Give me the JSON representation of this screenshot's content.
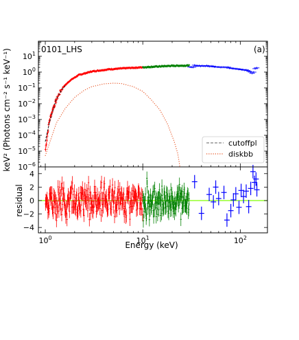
{
  "chart_data": [
    {
      "type": "scatter",
      "panel": "top",
      "tag": "(a)",
      "annotation": "0101_LHS",
      "ylabel": "keV² (Photons cm⁻² s⁻¹ keV⁻¹)",
      "xscale": "log",
      "yscale": "log",
      "xlim": [
        0.85,
        190
      ],
      "ylim": [
        1e-06,
        90
      ],
      "yticks": [
        1e-06,
        1e-05,
        0.0001,
        0.001,
        0.01,
        0.1,
        1,
        10
      ],
      "ytick_labels": [
        {
          "mant": "10",
          "exp": "−6"
        },
        {
          "mant": "10",
          "exp": "−5"
        },
        {
          "mant": "10",
          "exp": "−4"
        },
        {
          "mant": "10",
          "exp": "−3"
        },
        {
          "mant": "10",
          "exp": "−2"
        },
        {
          "mant": "10",
          "exp": "−1"
        },
        {
          "mant": "10",
          "exp": "0"
        },
        {
          "mant": "10",
          "exp": "1"
        }
      ],
      "legend_position": "lower-right",
      "legend": [
        {
          "label": "cutoffpl",
          "color": "#7f7f7f",
          "style": "dashed"
        },
        {
          "label": "diskbb",
          "color": "#e8501e",
          "style": "dotted"
        }
      ],
      "series": [
        {
          "name": "",
          "color": "#ff0000",
          "x_range": [
            1.0,
            10.0
          ],
          "description_points": [
            [
              1.0,
              1e-05
            ],
            [
              1.05,
              0.0001
            ],
            [
              1.1,
              0.0008
            ],
            [
              1.2,
              0.005
            ],
            [
              1.35,
              0.03
            ],
            [
              1.5,
              0.1
            ],
            [
              1.8,
              0.3
            ],
            [
              2.2,
              0.65
            ],
            [
              3.0,
              1.1
            ],
            [
              4.5,
              1.5
            ],
            [
              7.0,
              1.8
            ],
            [
              10.0,
              2.0
            ]
          ]
        },
        {
          "name": "",
          "color": "#008000",
          "x_range": [
            10.0,
            30.0
          ],
          "description_points": [
            [
              10.0,
              2.0
            ],
            [
              15.0,
              2.3
            ],
            [
              20.0,
              2.5
            ],
            [
              30.0,
              2.6
            ]
          ]
        },
        {
          "name": "",
          "color": "#0000ff",
          "x_range": [
            30.0,
            150.0
          ],
          "description_points": [
            [
              33,
              2.6
            ],
            [
              40,
              2.5
            ],
            [
              50,
              2.35
            ],
            [
              65,
              2.1
            ],
            [
              80,
              1.85
            ],
            [
              100,
              1.55
            ],
            [
              120,
              1.25
            ],
            [
              135,
              0.75
            ],
            [
              140,
              1.5
            ],
            [
              150,
              2.0
            ]
          ]
        }
      ],
      "models": [
        {
          "name": "cutoffpl",
          "points": [
            [
              1.0,
              4e-05
            ],
            [
              1.1,
              0.0006
            ],
            [
              1.2,
              0.004
            ],
            [
              1.3,
              0.02
            ],
            [
              1.5,
              0.09
            ],
            [
              2.0,
              0.5
            ],
            [
              3.0,
              1.1
            ],
            [
              5.0,
              1.6
            ],
            [
              10.0,
              2.0
            ],
            [
              20.0,
              2.5
            ],
            [
              40.0,
              2.5
            ],
            [
              80.0,
              1.9
            ],
            [
              150.0,
              1.0
            ]
          ]
        },
        {
          "name": "diskbb",
          "points": [
            [
              1.0,
              5e-06
            ],
            [
              1.1,
              3e-05
            ],
            [
              1.3,
              0.0006
            ],
            [
              1.6,
              0.005
            ],
            [
              2.0,
              0.025
            ],
            [
              2.5,
              0.07
            ],
            [
              3.0,
              0.12
            ],
            [
              4.0,
              0.18
            ],
            [
              5.0,
              0.2
            ],
            [
              6.0,
              0.19
            ],
            [
              8.0,
              0.12
            ],
            [
              10.0,
              0.06
            ],
            [
              12.0,
              0.02
            ],
            [
              15.0,
              0.004
            ],
            [
              18.0,
              0.0005
            ],
            [
              21.0,
              4e-05
            ],
            [
              23.0,
              6e-06
            ],
            [
              24.0,
              1e-06
            ]
          ]
        }
      ]
    },
    {
      "type": "scatter",
      "panel": "bottom",
      "xlabel": "Energy (keV)",
      "ylabel": "residual",
      "xscale": "log",
      "xlim": [
        0.85,
        190
      ],
      "ylim": [
        -4.8,
        5
      ],
      "xticks": [
        1,
        10,
        100
      ],
      "xtick_labels": [
        {
          "mant": "10",
          "exp": "0"
        },
        {
          "mant": "10",
          "exp": "1"
        },
        {
          "mant": "10",
          "exp": "2"
        }
      ],
      "yticks": [
        -4,
        -2,
        0,
        2,
        4
      ],
      "ytick_labels": [
        "−4",
        "−2",
        "0",
        "2",
        "4"
      ],
      "zero_line_color": "#7fff00",
      "series": [
        {
          "name": "",
          "color": "#ff0000",
          "x_range": [
            1.0,
            10.0
          ],
          "residual_spread": 2.0
        },
        {
          "name": "",
          "color": "#008000",
          "x_range": [
            10.0,
            30.0
          ],
          "residual_spread": 2.0
        },
        {
          "name": "",
          "color": "#0000ff",
          "points": [
            [
              34,
              2.8
            ],
            [
              40,
              -1.9
            ],
            [
              48,
              0.9
            ],
            [
              53,
              -0.2
            ],
            [
              56,
              2.0
            ],
            [
              60,
              0.3
            ],
            [
              68,
              1.2
            ],
            [
              73,
              -2.9
            ],
            [
              80,
              -1.5
            ],
            [
              85,
              0.1
            ],
            [
              90,
              1.0
            ],
            [
              97,
              -1.0
            ],
            [
              102,
              1.5
            ],
            [
              108,
              0.6
            ],
            [
              115,
              1.4
            ],
            [
              122,
              -0.9
            ],
            [
              128,
              1.8
            ],
            [
              135,
              4.3
            ],
            [
              140,
              2.7
            ],
            [
              145,
              3.2
            ],
            [
              148,
              1.6
            ]
          ]
        }
      ]
    }
  ]
}
